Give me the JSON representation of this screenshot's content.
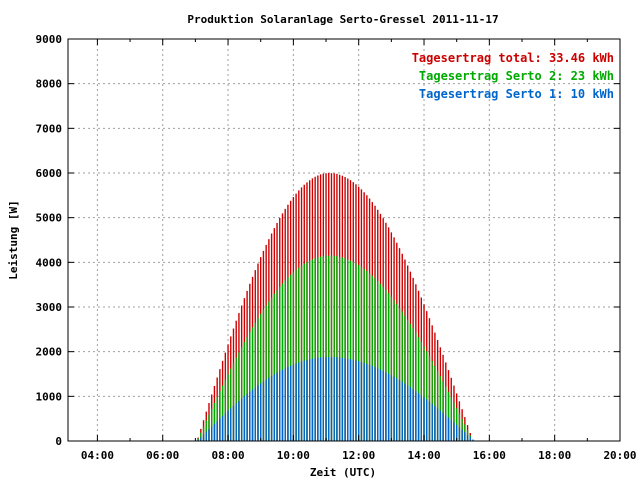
{
  "chart_data": {
    "type": "bar",
    "title": "Produktion Solaranlage Serto-Gressel 2011-11-17",
    "xlabel": "Zeit (UTC)",
    "ylabel": "Leistung [W]",
    "xlim": [
      3.1,
      20.0
    ],
    "ylim": [
      0,
      9000
    ],
    "x_ticks": [
      {
        "value": 4,
        "label": "04:00"
      },
      {
        "value": 6,
        "label": "06:00"
      },
      {
        "value": 8,
        "label": "08:00"
      },
      {
        "value": 10,
        "label": "10:00"
      },
      {
        "value": 12,
        "label": "12:00"
      },
      {
        "value": 14,
        "label": "14:00"
      },
      {
        "value": 16,
        "label": "16:00"
      },
      {
        "value": 18,
        "label": "18:00"
      },
      {
        "value": 20,
        "label": "20:00"
      }
    ],
    "y_ticks": [
      0,
      1000,
      2000,
      3000,
      4000,
      5000,
      6000,
      7000,
      8000,
      9000
    ],
    "grid": true,
    "legend_position": "top-right",
    "series": [
      {
        "name": "Tagesertrag total: 33.46 kWh",
        "color": "#cc0000",
        "profile": {
          "start": 7.05,
          "end": 15.5,
          "peak_time": 11.1,
          "peak": 6000
        }
      },
      {
        "name": "Tagesertrag Serto 2: 23 kWh",
        "color": "#00aa00",
        "profile": {
          "start": 7.05,
          "end": 15.5,
          "peak_time": 11.1,
          "peak": 4150
        }
      },
      {
        "name": "Tagesertrag Serto 1: 10 kWh",
        "color": "#0066cc",
        "profile": {
          "start": 7.05,
          "end": 15.55,
          "peak_time": 11.1,
          "peak": 1880
        }
      }
    ]
  }
}
